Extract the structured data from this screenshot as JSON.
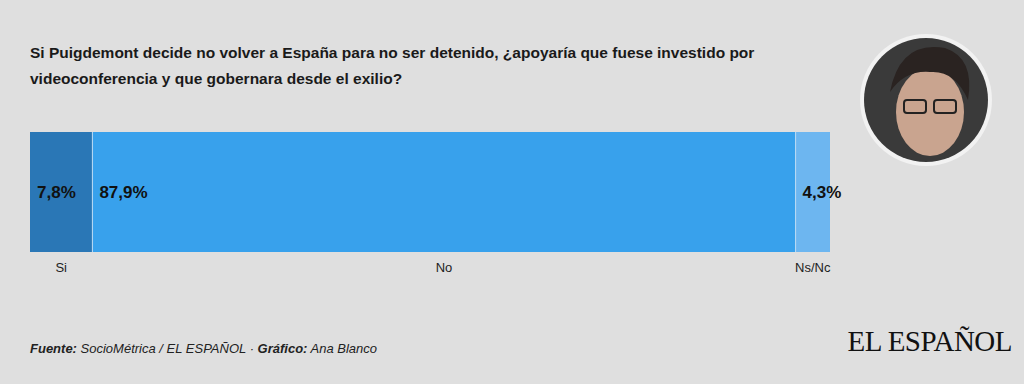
{
  "chart_data": {
    "type": "bar",
    "orientation": "horizontal",
    "stacked": true,
    "title": "Si Puigdemont decide no volver a España para no ser detenido, ¿apoyaría que fuese investido por videoconferencia y que gobernara desde el exilio?",
    "categories": [
      null
    ],
    "series": [
      {
        "name": "Si",
        "color": "#2a77b6",
        "values": [
          7.8
        ],
        "value_labels": [
          "7,8%"
        ]
      },
      {
        "name": "No",
        "color": "#38a1ec",
        "values": [
          87.9
        ],
        "value_labels": [
          "87,9%"
        ]
      },
      {
        "name": "Ns/Nc",
        "color": "#6db6f0",
        "values": [
          4.3
        ],
        "value_labels": [
          "4,3%"
        ]
      }
    ],
    "xlim": [
      0,
      100
    ],
    "tick_labels": false,
    "grid": false,
    "data_labels": true,
    "annotations": [
      {
        "label": "Fuente:",
        "text": "SocioMétrica / EL ESPAÑOL ·"
      },
      {
        "label": "Gráfico:",
        "text": "Ana Blanco"
      }
    ],
    "publisher": "EL ESPAÑOL"
  }
}
